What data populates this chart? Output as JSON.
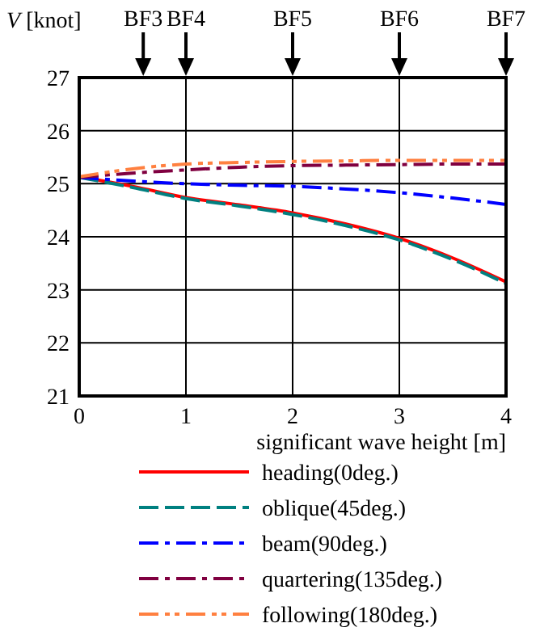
{
  "chart_data": {
    "type": "line",
    "xlabel": "significant wave height [m]",
    "ylabel": "V [knot]",
    "xlim": [
      0,
      4
    ],
    "xticks": [
      0,
      1,
      2,
      3,
      4
    ],
    "ylim": [
      21,
      27
    ],
    "yticks": [
      21,
      22,
      23,
      24,
      25,
      26,
      27
    ],
    "ref_lines": [
      {
        "axis": "x",
        "value": 0.6,
        "label": "BF3"
      },
      {
        "axis": "x",
        "value": 1,
        "label": "BF4"
      },
      {
        "axis": "x",
        "value": 2,
        "label": "BF5"
      },
      {
        "axis": "x",
        "value": 3,
        "label": "BF6"
      },
      {
        "axis": "x",
        "value": 4,
        "label": "BF7"
      }
    ],
    "grid": true,
    "legend": "bottom",
    "x": [
      0,
      0.5,
      1,
      1.5,
      2,
      2.5,
      3,
      3.5,
      4
    ],
    "series": [
      {
        "name": "heading(0deg.)",
        "color": "#ff0000",
        "line_style": "solid",
        "values": [
          25.13,
          24.95,
          24.74,
          24.6,
          24.45,
          24.24,
          23.97,
          23.6,
          23.15
        ]
      },
      {
        "name": "oblique(45deg.)",
        "color": "#008080",
        "line_style": "dashed",
        "values": [
          25.12,
          24.93,
          24.72,
          24.58,
          24.42,
          24.21,
          23.94,
          23.57,
          23.12
        ]
      },
      {
        "name": "beam(90deg.)",
        "color": "#0000ff",
        "line_style": "dashed",
        "values": [
          25.12,
          25.05,
          25,
          24.97,
          24.95,
          24.9,
          24.83,
          24.73,
          24.61
        ]
      },
      {
        "name": "quartering(135deg.)",
        "color": "#800040",
        "line_style": "dashed",
        "values": [
          25.12,
          25.2,
          25.26,
          25.31,
          25.34,
          25.35,
          25.36,
          25.37,
          25.37
        ]
      },
      {
        "name": "following(180deg.)",
        "color": "#ff8040",
        "line_style": "dashed",
        "values": [
          25.13,
          25.28,
          25.37,
          25.4,
          25.42,
          25.43,
          25.44,
          25.44,
          25.44
        ]
      }
    ]
  }
}
